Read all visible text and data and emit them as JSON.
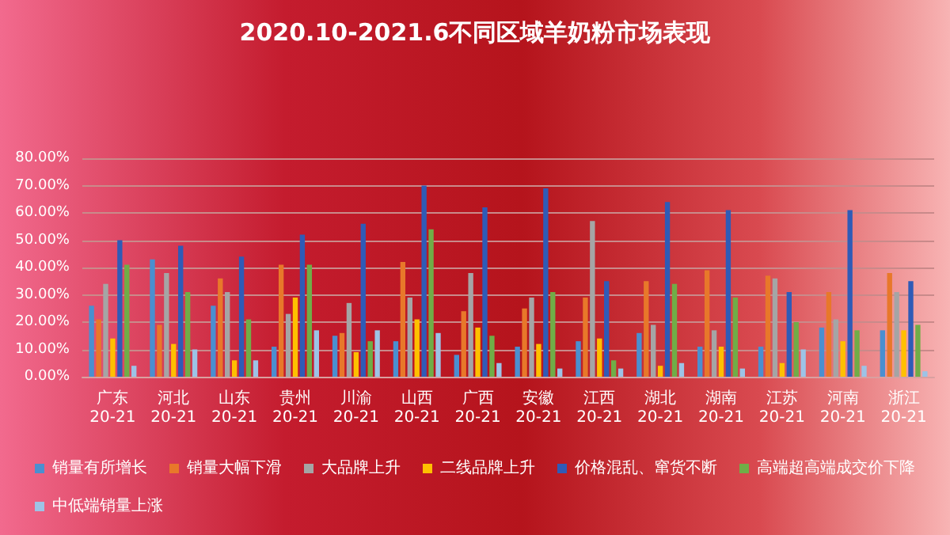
{
  "chart_data": {
    "type": "bar",
    "title": "2020.10-2021.6不同区域羊奶粉市场表现",
    "categories": [
      "广东20-21",
      "河北20-21",
      "山东20-21",
      "贵州20-21",
      "川渝20-21",
      "山西20-21",
      "广西20-21",
      "安徽20-21",
      "江西20-21",
      "湖北20-21",
      "湖南20-21",
      "江苏20-21",
      "河南20-21",
      "浙江20-21"
    ],
    "series": [
      {
        "name": "销量有所增长",
        "color": "#4a8fd0",
        "values": [
          26,
          43,
          26,
          11,
          15,
          13,
          8,
          11,
          13,
          16,
          11,
          11,
          18,
          17
        ]
      },
      {
        "name": "销量大幅下滑",
        "color": "#e8782a",
        "values": [
          21,
          19,
          36,
          41,
          16,
          42,
          24,
          25,
          29,
          35,
          39,
          37,
          31,
          38
        ]
      },
      {
        "name": "大品牌上升",
        "color": "#a5a5a5",
        "values": [
          34,
          38,
          31,
          23,
          27,
          29,
          38,
          29,
          57,
          19,
          17,
          36,
          21,
          31
        ]
      },
      {
        "name": "二线品牌上升",
        "color": "#ffc000",
        "values": [
          14,
          12,
          6,
          29,
          9,
          21,
          18,
          12,
          14,
          4,
          11,
          5,
          13,
          17
        ]
      },
      {
        "name": "价格混乱、窜货不断",
        "color": "#2f5bb7",
        "values": [
          50,
          48,
          44,
          52,
          56,
          70,
          62,
          69,
          35,
          64,
          61,
          31,
          61,
          35
        ]
      },
      {
        "name": "高端超高端成交价下降",
        "color": "#70ad47",
        "values": [
          41,
          31,
          21,
          41,
          13,
          54,
          15,
          31,
          6,
          34,
          29,
          20,
          17,
          19
        ]
      },
      {
        "name": "中低端销量上涨",
        "color": "#9dc3e6",
        "values": [
          4,
          10,
          6,
          17,
          17,
          16,
          5,
          3,
          3,
          5,
          3,
          10,
          4,
          2
        ]
      }
    ],
    "ylim": [
      0,
      80
    ],
    "yticks": [
      {
        "value": 0,
        "label": "0.00%"
      },
      {
        "value": 10,
        "label": "10.00%"
      },
      {
        "value": 20,
        "label": "20.00%"
      },
      {
        "value": 30,
        "label": "30.00%"
      },
      {
        "value": 40,
        "label": "40.00%"
      },
      {
        "value": 50,
        "label": "50.00%"
      },
      {
        "value": 60,
        "label": "60.00%"
      },
      {
        "value": 70,
        "label": "70.00%"
      },
      {
        "value": 80,
        "label": "80.00%"
      }
    ],
    "grid": "y",
    "legend": "bottom"
  }
}
